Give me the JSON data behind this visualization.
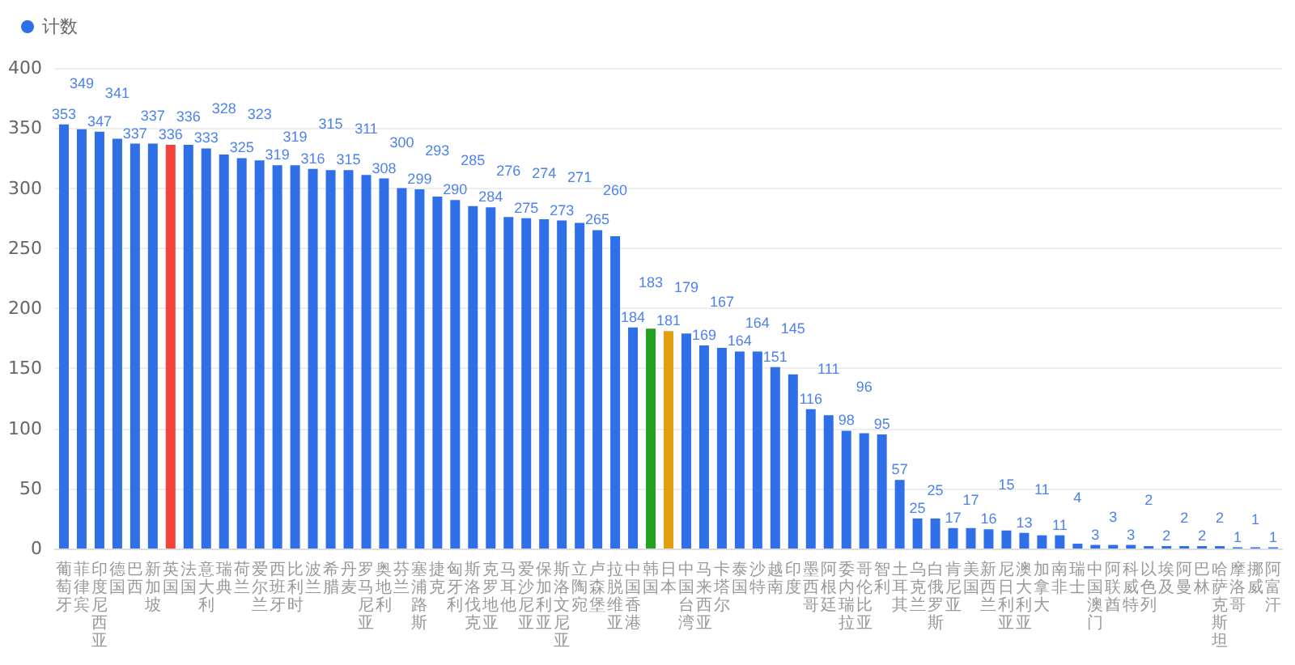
{
  "chart_data": {
    "type": "bar",
    "categories": [
      "葡萄牙",
      "菲律宾",
      "印度尼西亚",
      "德国",
      "巴西",
      "新加坡",
      "英国",
      "法国",
      "意大利",
      "瑞典",
      "荷兰",
      "爱尔兰",
      "西班牙",
      "比利时",
      "波兰",
      "希腊",
      "丹麦",
      "罗马尼亚",
      "奥地利",
      "芬兰",
      "塞浦路斯",
      "捷克",
      "匈牙利",
      "斯洛伐克",
      "克罗地亚",
      "马耳他",
      "爱沙尼亚",
      "保加利亚",
      "斯洛文尼亚",
      "立陶宛",
      "卢森堡",
      "拉脱维亚",
      "中国香港",
      "韩国",
      "日本",
      "中国台湾",
      "马来西亚",
      "卡塔尔",
      "泰国",
      "沙特",
      "越南",
      "印度",
      "墨西哥",
      "阿根廷",
      "委内瑞拉",
      "哥伦比亚",
      "智利",
      "土耳其",
      "乌克兰",
      "白俄罗斯",
      "肯尼亚",
      "美国",
      "新西兰",
      "尼日利亚",
      "澳大利亚",
      "加拿大",
      "南非",
      "瑞士",
      "中国澳门",
      "阿联酋",
      "科威特",
      "以色列",
      "埃及",
      "阿曼",
      "巴林",
      "哈萨克斯坦",
      "摩洛哥",
      "挪威",
      "阿富汗"
    ],
    "series": [
      {
        "name": "计数",
        "color": "#2f6fe8",
        "values": [
          353,
          349,
          347,
          341,
          337,
          337,
          336,
          336,
          333,
          328,
          325,
          323,
          319,
          319,
          316,
          315,
          315,
          311,
          308,
          300,
          299,
          293,
          290,
          285,
          284,
          276,
          275,
          274,
          273,
          271,
          265,
          260,
          184,
          183,
          181,
          179,
          169,
          167,
          164,
          164,
          151,
          145,
          116,
          111,
          98,
          96,
          95,
          57,
          25,
          25,
          17,
          17,
          16,
          15,
          13,
          11,
          11,
          4,
          3,
          3,
          3,
          2,
          2,
          2,
          2,
          2,
          1,
          1,
          1
        ],
        "colors": [
          "#2f6fe8",
          "#2f6fe8",
          "#2f6fe8",
          "#2f6fe8",
          "#2f6fe8",
          "#2f6fe8",
          "#f5433b",
          "#2f6fe8",
          "#2f6fe8",
          "#2f6fe8",
          "#2f6fe8",
          "#2f6fe8",
          "#2f6fe8",
          "#2f6fe8",
          "#2f6fe8",
          "#2f6fe8",
          "#2f6fe8",
          "#2f6fe8",
          "#2f6fe8",
          "#2f6fe8",
          "#2f6fe8",
          "#2f6fe8",
          "#2f6fe8",
          "#2f6fe8",
          "#2f6fe8",
          "#2f6fe8",
          "#2f6fe8",
          "#2f6fe8",
          "#2f6fe8",
          "#2f6fe8",
          "#2f6fe8",
          "#2f6fe8",
          "#2f6fe8",
          "#23a020",
          "#e0a010",
          "#2f6fe8",
          "#2f6fe8",
          "#2f6fe8",
          "#2f6fe8",
          "#2f6fe8",
          "#2f6fe8",
          "#2f6fe8",
          "#2f6fe8",
          "#2f6fe8",
          "#2f6fe8",
          "#2f6fe8",
          "#2f6fe8",
          "#2f6fe8",
          "#2f6fe8",
          "#2f6fe8",
          "#2f6fe8",
          "#2f6fe8",
          "#2f6fe8",
          "#2f6fe8",
          "#2f6fe8",
          "#2f6fe8",
          "#2f6fe8",
          "#2f6fe8",
          "#2f6fe8",
          "#2f6fe8",
          "#2f6fe8",
          "#2f6fe8",
          "#2f6fe8",
          "#2f6fe8",
          "#2f6fe8",
          "#2f6fe8",
          "#2f6fe8",
          "#2f6fe8",
          "#2f6fe8"
        ]
      }
    ],
    "ylim": [
      0,
      400
    ],
    "yticks": [
      0,
      50,
      100,
      150,
      200,
      250,
      300,
      350,
      400
    ],
    "grid": "y",
    "legend": "top left",
    "data_labels": true
  }
}
